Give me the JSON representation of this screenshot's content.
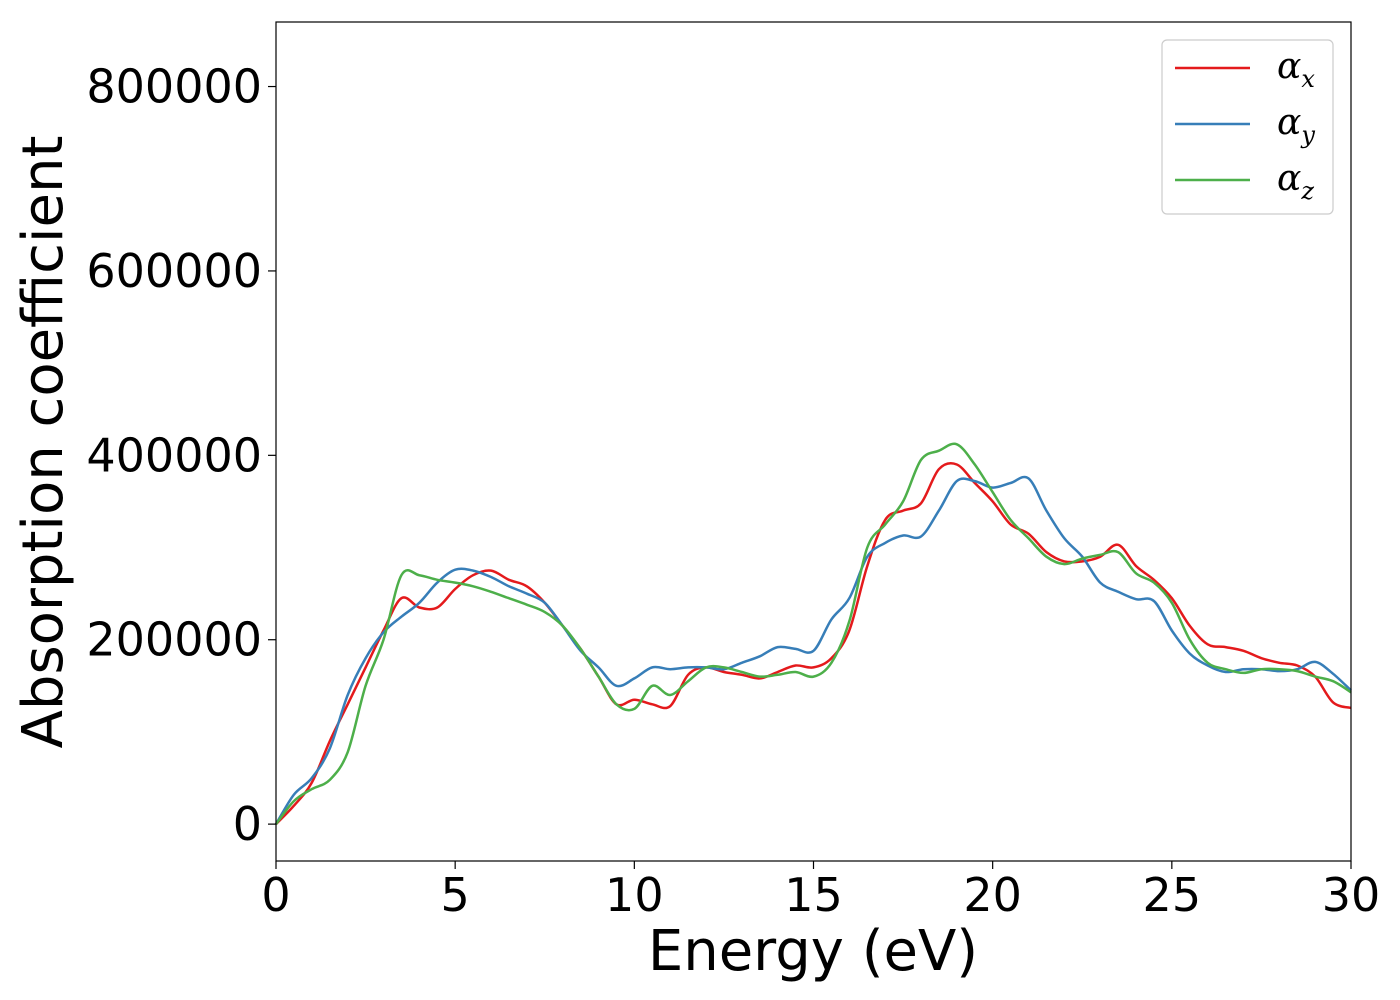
{
  "chart_data": {
    "type": "line",
    "title": "",
    "xlabel": "Energy (eV)",
    "ylabel": "Absorption coefficient",
    "xlim": [
      0,
      30
    ],
    "ylim": [
      -40000,
      870000
    ],
    "xticks": [
      0,
      5,
      10,
      15,
      20,
      25,
      30
    ],
    "xtick_labels": [
      "0",
      "5",
      "10",
      "15",
      "20",
      "25",
      "30"
    ],
    "yticks": [
      0,
      200000,
      400000,
      600000,
      800000
    ],
    "ytick_labels": [
      "0",
      "200000",
      "400000",
      "600000",
      "800000"
    ],
    "grid": false,
    "legend_position": "top-right",
    "series": [
      {
        "name": "αx",
        "symbol": "α",
        "subscript": "x",
        "color": "#e41a1c",
        "x": [
          0,
          0.5,
          1,
          1.5,
          2,
          2.5,
          3,
          3.5,
          4,
          4.5,
          5,
          5.5,
          6,
          6.5,
          7,
          7.5,
          8,
          8.5,
          9,
          9.5,
          10,
          10.5,
          11,
          11.5,
          12,
          12.5,
          13,
          13.5,
          14,
          14.5,
          15,
          15.5,
          16,
          16.5,
          17,
          17.5,
          18,
          18.5,
          19,
          19.5,
          20,
          20.5,
          21,
          21.5,
          22,
          22.5,
          23,
          23.5,
          24,
          24.5,
          25,
          25.5,
          26,
          26.5,
          27,
          27.5,
          28,
          28.5,
          29,
          29.5,
          30
        ],
        "y": [
          0,
          20000,
          45000,
          90000,
          130000,
          170000,
          210000,
          245000,
          235000,
          235000,
          255000,
          270000,
          275000,
          265000,
          258000,
          240000,
          215000,
          190000,
          160000,
          130000,
          135000,
          130000,
          128000,
          162000,
          170000,
          165000,
          162000,
          158000,
          165000,
          172000,
          170000,
          180000,
          210000,
          280000,
          330000,
          340000,
          348000,
          385000,
          390000,
          370000,
          350000,
          325000,
          315000,
          295000,
          285000,
          285000,
          290000,
          303000,
          280000,
          265000,
          245000,
          215000,
          195000,
          192000,
          188000,
          180000,
          175000,
          172000,
          160000,
          132000,
          126000
        ]
      },
      {
        "name": "αy",
        "symbol": "α",
        "subscript": "y",
        "color": "#377eb8",
        "x": [
          0,
          0.5,
          1,
          1.5,
          2,
          2.5,
          3,
          3.5,
          4,
          4.5,
          5,
          5.5,
          6,
          6.5,
          7,
          7.5,
          8,
          8.5,
          9,
          9.5,
          10,
          10.5,
          11,
          11.5,
          12,
          12.5,
          13,
          13.5,
          14,
          14.5,
          15,
          15.5,
          16,
          16.5,
          17,
          17.5,
          18,
          18.5,
          19,
          19.5,
          20,
          20.5,
          21,
          21.5,
          22,
          22.5,
          23,
          23.5,
          24,
          24.5,
          25,
          25.5,
          26,
          26.5,
          27,
          27.5,
          28,
          28.5,
          29,
          29.5,
          30
        ],
        "y": [
          0,
          32000,
          50000,
          82000,
          140000,
          180000,
          208000,
          225000,
          240000,
          262000,
          276000,
          275000,
          268000,
          258000,
          250000,
          240000,
          215000,
          188000,
          170000,
          150000,
          158000,
          170000,
          168000,
          170000,
          170000,
          168000,
          175000,
          182000,
          192000,
          190000,
          188000,
          222000,
          245000,
          290000,
          305000,
          313000,
          312000,
          340000,
          372000,
          372000,
          365000,
          370000,
          375000,
          340000,
          310000,
          290000,
          262000,
          252000,
          244000,
          242000,
          210000,
          185000,
          172000,
          165000,
          168000,
          168000,
          166000,
          168000,
          176000,
          163000,
          145000
        ]
      },
      {
        "name": "αz",
        "symbol": "α",
        "subscript": "z",
        "color": "#4daf4a",
        "x": [
          0,
          0.5,
          1,
          1.5,
          2,
          2.5,
          3,
          3.5,
          4,
          4.5,
          5,
          5.5,
          6,
          6.5,
          7,
          7.5,
          8,
          8.5,
          9,
          9.5,
          10,
          10.5,
          11,
          11.5,
          12,
          12.5,
          13,
          13.5,
          14,
          14.5,
          15,
          15.5,
          16,
          16.5,
          17,
          17.5,
          18,
          18.5,
          19,
          19.5,
          20,
          20.5,
          21,
          21.5,
          22,
          22.5,
          23,
          23.5,
          24,
          24.5,
          25,
          25.5,
          26,
          26.5,
          27,
          27.5,
          28,
          28.5,
          29,
          29.5,
          30
        ],
        "y": [
          0,
          25000,
          38000,
          48000,
          78000,
          150000,
          200000,
          270000,
          270000,
          265000,
          262000,
          258000,
          252000,
          245000,
          238000,
          230000,
          215000,
          190000,
          160000,
          130000,
          125000,
          150000,
          140000,
          155000,
          170000,
          170000,
          165000,
          160000,
          162000,
          165000,
          160000,
          175000,
          220000,
          300000,
          325000,
          350000,
          395000,
          405000,
          412000,
          390000,
          360000,
          330000,
          310000,
          290000,
          282000,
          288000,
          292000,
          295000,
          272000,
          262000,
          240000,
          200000,
          175000,
          168000,
          164000,
          168000,
          168000,
          166000,
          160000,
          155000,
          143000
        ]
      }
    ]
  }
}
